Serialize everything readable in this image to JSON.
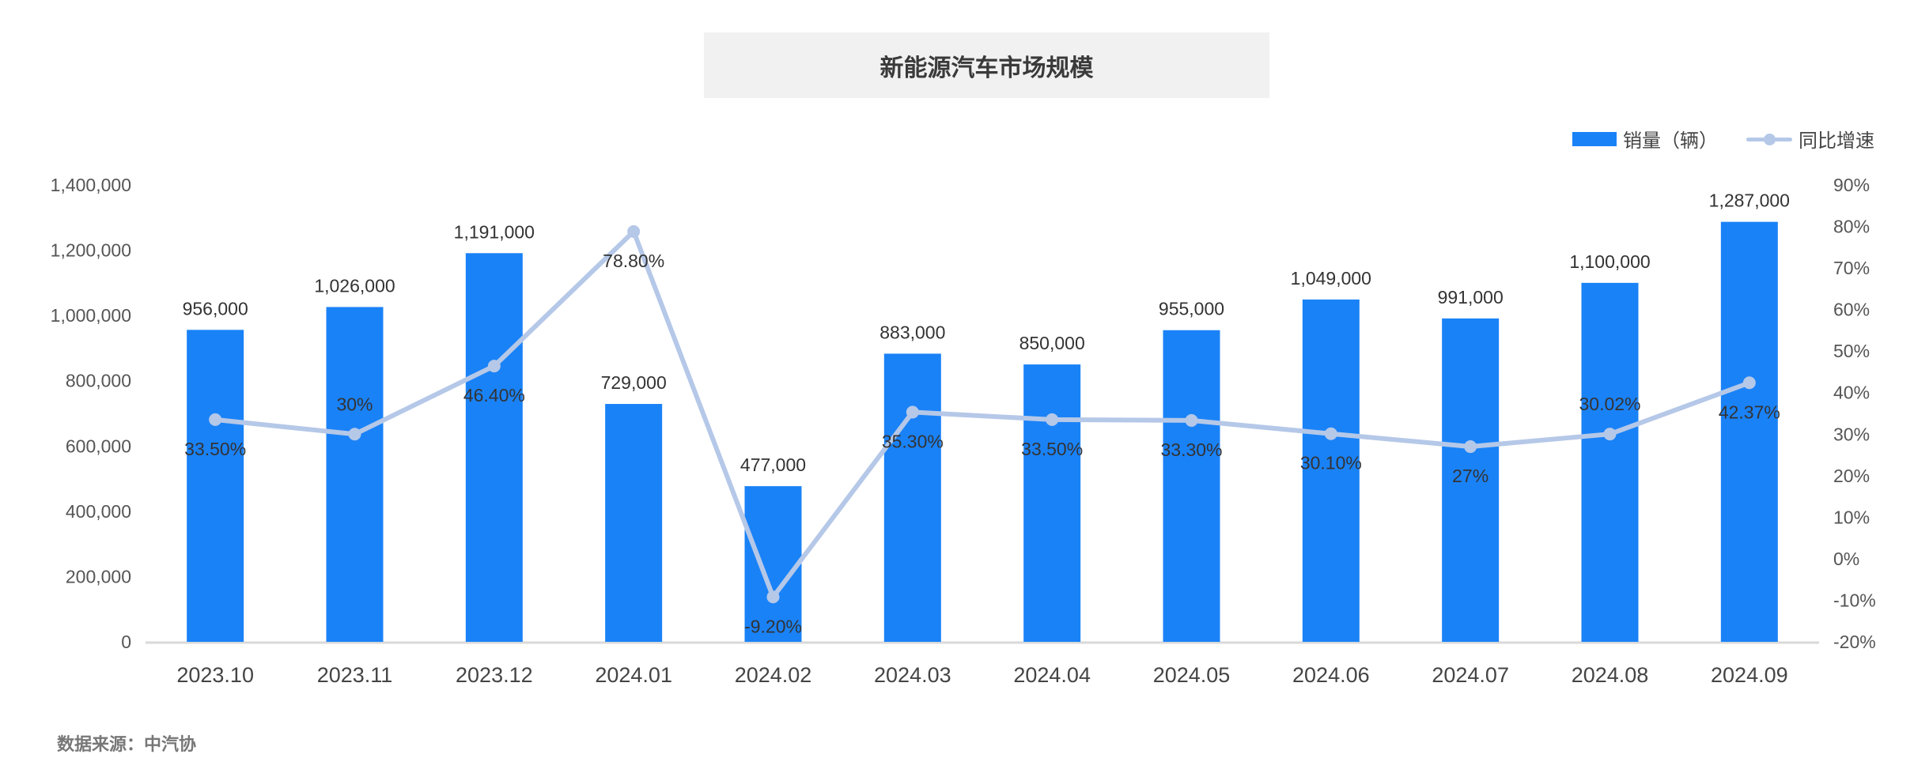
{
  "title": "新能源汽车市场规模",
  "legend": {
    "bar_label": "销量（辆）",
    "line_label": "同比增速"
  },
  "source": "数据来源：中汽协",
  "colors": {
    "bar": "#1a82f7",
    "line": "#b5c8e8",
    "axis": "#d9d9d9",
    "title_bg": "#f1f1f1"
  },
  "chart_data": {
    "type": "bar+line",
    "title": "新能源汽车市场规模",
    "categories": [
      "2023.10",
      "2023.11",
      "2023.12",
      "2024.01",
      "2024.02",
      "2024.03",
      "2024.04",
      "2024.05",
      "2024.06",
      "2024.07",
      "2024.08",
      "2024.09"
    ],
    "series": [
      {
        "name": "销量（辆）",
        "type": "bar",
        "axis": "left",
        "values": [
          956000,
          1026000,
          1191000,
          729000,
          477000,
          883000,
          850000,
          955000,
          1049000,
          991000,
          1100000,
          1287000
        ],
        "labels": [
          "956,000",
          "1,026,000",
          "1,191,000",
          "729,000",
          "477,000",
          "883,000",
          "850,000",
          "955,000",
          "1,049,000",
          "991,000",
          "1,100,000",
          "1,287,000"
        ]
      },
      {
        "name": "同比增速",
        "type": "line",
        "axis": "right",
        "values": [
          33.5,
          30,
          46.4,
          78.8,
          -9.2,
          35.3,
          33.5,
          33.3,
          30.1,
          27,
          30.02,
          42.37
        ],
        "labels": [
          "33.50%",
          "30%",
          "46.40%",
          "78.80%",
          "-9.20%",
          "35.30%",
          "33.50%",
          "33.30%",
          "30.10%",
          "27%",
          "30.02%",
          "42.37%"
        ]
      }
    ],
    "y_left": {
      "min": 0,
      "max": 1400000,
      "ticks": [
        "0",
        "200,000",
        "400,000",
        "600,000",
        "800,000",
        "1,000,000",
        "1,200,000",
        "1,400,000"
      ]
    },
    "y_right": {
      "min": -20,
      "max": 90,
      "ticks": [
        "-20%",
        "-10%",
        "0%",
        "10%",
        "20%",
        "30%",
        "40%",
        "50%",
        "60%",
        "70%",
        "80%",
        "90%"
      ]
    },
    "xlabel": "",
    "ylabel": "",
    "grid": false,
    "legend_position": "top-right"
  }
}
